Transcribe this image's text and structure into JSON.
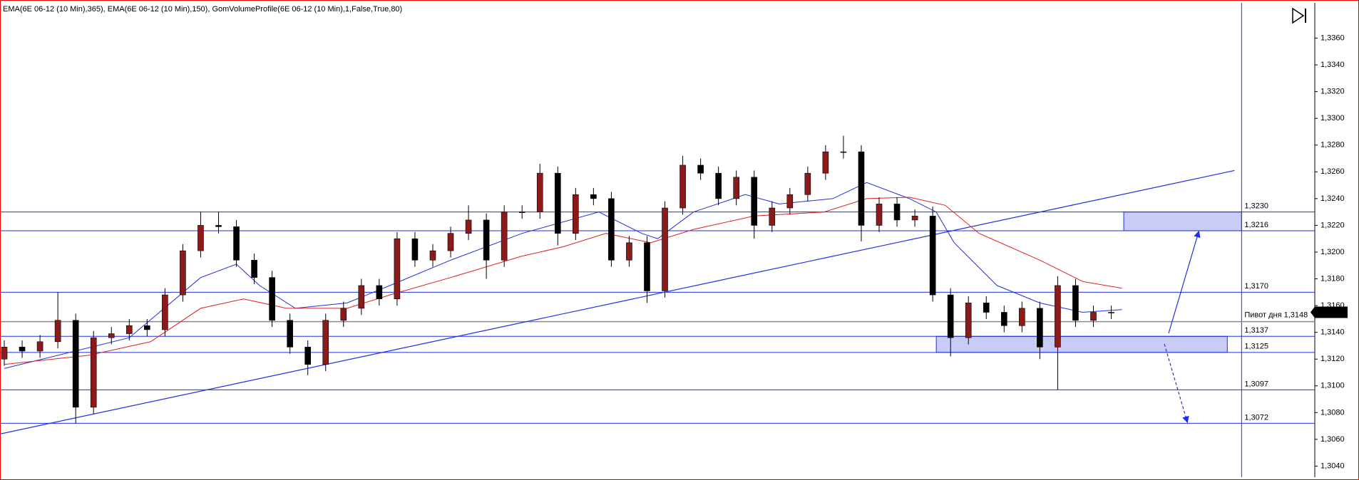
{
  "chart_data": {
    "type": "candlestick",
    "title": "EMA(6E 06-12 (10 Min),365), EMA(6E 06-12 (10 Min),150), GomVolumeProfile(6E 06-12 (10 Min),1,False,True,80)",
    "open": [
      1.312,
      1.3129,
      1.3126,
      1.3133,
      1.3149,
      1.3084,
      1.3136,
      1.3139,
      1.3145,
      1.3142,
      1.3168,
      1.3201,
      1.322,
      1.3219,
      1.3194,
      1.3181,
      1.3149,
      1.3129,
      1.3116,
      1.3149,
      1.3158,
      1.3175,
      1.3165,
      1.321,
      1.3194,
      1.3201,
      1.3214,
      1.3224,
      1.3194,
      1.323,
      1.323,
      1.3259,
      1.3214,
      1.3243,
      1.324,
      1.3194,
      1.3207,
      1.3171,
      1.3233,
      1.3265,
      1.3259,
      1.324,
      1.3256,
      1.322,
      1.3233,
      1.3243,
      1.3259,
      1.3275,
      1.3275,
      1.322,
      1.3236,
      1.3224,
      1.3227,
      1.3168,
      1.3136,
      1.3162,
      1.3155,
      1.3145,
      1.3158,
      1.3129,
      1.3175,
      1.3149,
      1.3155
    ],
    "high": [
      1.3134,
      1.3134,
      1.3138,
      1.317,
      1.3154,
      1.3141,
      1.3144,
      1.315,
      1.315,
      1.3173,
      1.3206,
      1.323,
      1.323,
      1.3224,
      1.3199,
      1.3186,
      1.3154,
      1.3134,
      1.3154,
      1.3163,
      1.318,
      1.318,
      1.3215,
      1.3215,
      1.3206,
      1.3219,
      1.3235,
      1.3229,
      1.3235,
      1.3235,
      1.3266,
      1.3264,
      1.3248,
      1.3248,
      1.3245,
      1.3212,
      1.3212,
      1.3238,
      1.3272,
      1.327,
      1.3264,
      1.3261,
      1.3261,
      1.3238,
      1.3248,
      1.3264,
      1.328,
      1.3287,
      1.328,
      1.3241,
      1.3241,
      1.3232,
      1.3234,
      1.3173,
      1.3167,
      1.3167,
      1.316,
      1.3163,
      1.3163,
      1.3182,
      1.318,
      1.316,
      1.316
    ],
    "low": [
      1.3115,
      1.3121,
      1.3121,
      1.3128,
      1.3072,
      1.3079,
      1.3131,
      1.3134,
      1.3137,
      1.3137,
      1.3163,
      1.3196,
      1.3214,
      1.3189,
      1.3176,
      1.3144,
      1.3124,
      1.3108,
      1.3111,
      1.3144,
      1.3153,
      1.316,
      1.316,
      1.3189,
      1.3189,
      1.3196,
      1.3209,
      1.318,
      1.3189,
      1.3225,
      1.3225,
      1.3205,
      1.3209,
      1.3235,
      1.3189,
      1.3189,
      1.3162,
      1.3166,
      1.3228,
      1.3254,
      1.3235,
      1.3235,
      1.321,
      1.3215,
      1.3228,
      1.3238,
      1.3254,
      1.327,
      1.3208,
      1.3215,
      1.3219,
      1.3219,
      1.3163,
      1.3122,
      1.3131,
      1.315,
      1.314,
      1.314,
      1.312,
      1.3097,
      1.3144,
      1.3144,
      1.315
    ],
    "close": [
      1.3129,
      1.3126,
      1.3133,
      1.3149,
      1.3084,
      1.3136,
      1.3139,
      1.3145,
      1.3142,
      1.3168,
      1.3201,
      1.322,
      1.3219,
      1.3194,
      1.3181,
      1.3149,
      1.3129,
      1.3116,
      1.3149,
      1.3158,
      1.3175,
      1.3165,
      1.321,
      1.3194,
      1.3201,
      1.3214,
      1.3224,
      1.3194,
      1.323,
      1.323,
      1.3259,
      1.3214,
      1.3243,
      1.324,
      1.3194,
      1.3207,
      1.3171,
      1.3233,
      1.3265,
      1.3259,
      1.324,
      1.3256,
      1.322,
      1.3233,
      1.3243,
      1.3259,
      1.3275,
      1.3275,
      1.322,
      1.3236,
      1.3224,
      1.3227,
      1.3168,
      1.3136,
      1.3162,
      1.3155,
      1.3145,
      1.3158,
      1.3129,
      1.3175,
      1.3149,
      1.3155,
      1.3155
    ],
    "up_color": "#8b1a1a",
    "down_color": "#000000",
    "emas": [
      {
        "color": "#1f2fe0",
        "x": [
          0,
          7,
          11,
          13,
          14.3,
          16.3,
          19.2,
          21.6,
          25,
          29,
          33.3,
          35.7,
          36.6,
          38.6,
          41.5,
          43.4,
          46.4,
          48.3,
          50.7,
          52.2,
          53.2,
          55.6,
          58,
          60.4,
          62.6
        ],
        "values": [
          1.3113,
          1.3136,
          1.3181,
          1.3191,
          1.3175,
          1.3158,
          1.3162,
          1.3175,
          1.3194,
          1.3214,
          1.323,
          1.3214,
          1.321,
          1.323,
          1.3243,
          1.3236,
          1.324,
          1.3252,
          1.324,
          1.323,
          1.3207,
          1.3175,
          1.3162,
          1.3155,
          1.3157
        ]
      },
      {
        "color": "#e01f1f",
        "x": [
          0,
          4.8,
          8.2,
          11,
          13.4,
          15.8,
          19.2,
          21.6,
          25,
          29,
          31.3,
          33.7,
          36.2,
          38.6,
          42,
          45.9,
          48.3,
          50.7,
          52.7,
          54.6,
          58,
          60.4,
          62.6
        ],
        "values": [
          1.3116,
          1.3123,
          1.3133,
          1.3158,
          1.3165,
          1.3158,
          1.3158,
          1.3168,
          1.3181,
          1.3197,
          1.3204,
          1.3214,
          1.3207,
          1.3217,
          1.3227,
          1.323,
          1.324,
          1.3241,
          1.3235,
          1.3214,
          1.3194,
          1.3178,
          1.3173
        ]
      }
    ],
    "levels": [
      {
        "value": 1.323,
        "label": "1,3230"
      },
      {
        "value": 1.3216,
        "label": "1,3216"
      },
      {
        "value": 1.317,
        "label": "1,3170"
      },
      {
        "value": 1.3137,
        "label": "1,3137"
      },
      {
        "value": 1.3125,
        "label": "1,3125"
      },
      {
        "value": 1.3097,
        "label": "1,3097"
      },
      {
        "value": 1.3072,
        "label": "1,3072"
      }
    ],
    "level_color": "#1f2fe0",
    "pivot": {
      "value": 1.3148,
      "label": "Пивот дня 1,3148"
    },
    "pivot_color": "#888888",
    "current_price": {
      "value": 1.3155,
      "label": "1,3155"
    },
    "trendline": {
      "x": [
        -0.24,
        68.9
      ],
      "values": [
        1.3064,
        1.3261
      ]
    },
    "zones": [
      {
        "x": [
          62.7,
          69.3
        ],
        "range": [
          1.3216,
          1.323
        ]
      },
      {
        "x": [
          52.2,
          68.5
        ],
        "range": [
          1.3125,
          1.3137
        ]
      }
    ],
    "zone_color": "#c8ccf6",
    "vline_x": 69.3,
    "xlim": [
      -0.24,
      73.4
    ],
    "ylim": [
      1.30296,
      1.33885
    ],
    "yticks": [
      {
        "value": 1.304,
        "label": "1,3040"
      },
      {
        "value": 1.306,
        "label": "1,3060"
      },
      {
        "value": 1.308,
        "label": "1,3080"
      },
      {
        "value": 1.31,
        "label": "1,3100"
      },
      {
        "value": 1.312,
        "label": "1,3120"
      },
      {
        "value": 1.314,
        "label": "1,3140"
      },
      {
        "value": 1.316,
        "label": "1,3160"
      },
      {
        "value": 1.318,
        "label": "1,3180"
      },
      {
        "value": 1.32,
        "label": "1,3200"
      },
      {
        "value": 1.322,
        "label": "1,3220"
      },
      {
        "value": 1.324,
        "label": "1,3240"
      },
      {
        "value": 1.326,
        "label": "1,3260"
      },
      {
        "value": 1.328,
        "label": "1,3280"
      },
      {
        "value": 1.33,
        "label": "1,3300"
      },
      {
        "value": 1.332,
        "label": "1,3320"
      },
      {
        "value": 1.334,
        "label": "1,3340"
      },
      {
        "value": 1.336,
        "label": "1,3360"
      }
    ]
  }
}
